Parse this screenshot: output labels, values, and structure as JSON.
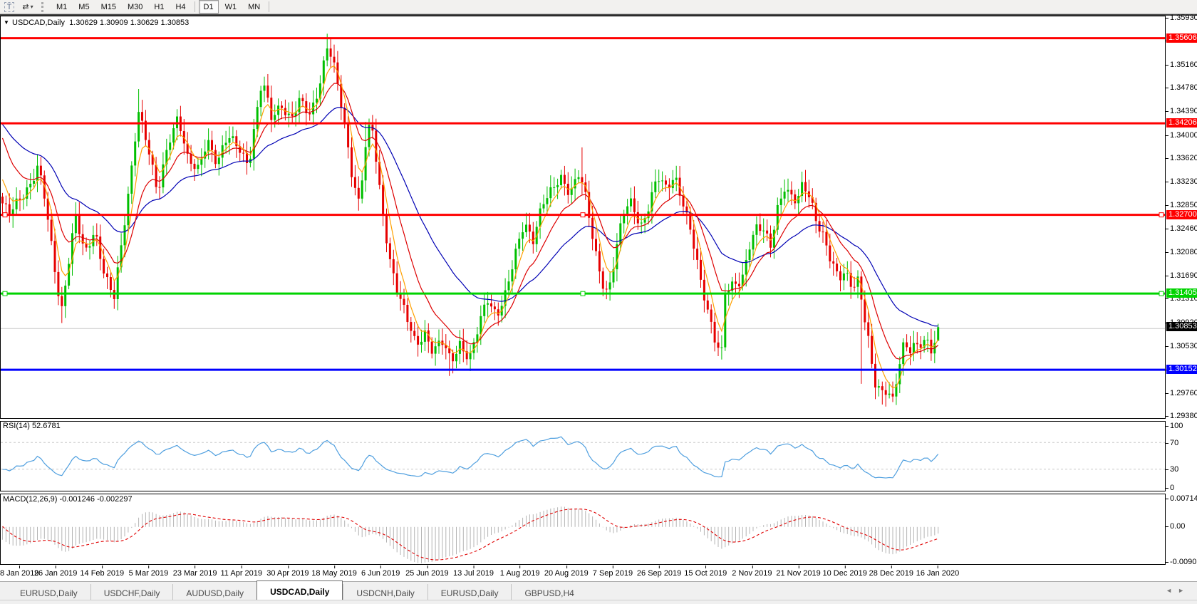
{
  "toolbar": {
    "tools": [
      {
        "name": "text-tool",
        "glyph": "T"
      },
      {
        "name": "cursor-tool",
        "glyph": "⇄",
        "caret": "▾"
      }
    ],
    "timeframes": [
      "M1",
      "M5",
      "M15",
      "M30",
      "H1",
      "H4",
      "D1",
      "W1",
      "MN"
    ],
    "active_timeframe": "D1"
  },
  "chart": {
    "title": "USDCAD,Daily  1.30629 1.30909 1.30629 1.30853",
    "dropdown_icon": "▼",
    "price_axis_ticks": [
      "1.35930",
      "1.35550",
      "1.35160",
      "1.34780",
      "1.34390",
      "1.34000",
      "1.33620",
      "1.33230",
      "1.32850",
      "1.32460",
      "1.32080",
      "1.31690",
      "1.31310",
      "1.30920",
      "1.30530",
      "1.30140",
      "1.29760",
      "1.29380"
    ],
    "hlines": [
      {
        "price": 1.35606,
        "label": "1.35606",
        "color": "#ff0000",
        "width": 3,
        "handles": false
      },
      {
        "price": 1.34206,
        "label": "1.34206",
        "color": "#ff0000",
        "width": 3,
        "handles": false
      },
      {
        "price": 1.327,
        "label": "1.32700",
        "color": "#ff0000",
        "width": 3,
        "handles": true
      },
      {
        "price": 1.31405,
        "label": "1.31405",
        "color": "#00d300",
        "width": 3,
        "handles": true
      },
      {
        "price": 1.30152,
        "label": "1.30152",
        "color": "#0000ff",
        "width": 3,
        "handles": false
      },
      {
        "price": 1.3083,
        "label": "",
        "color": "#c8c8c8",
        "width": 1,
        "handles": false
      }
    ],
    "current_price": {
      "label": "1.30853",
      "value": 1.30853,
      "badge_color": "#000000"
    }
  },
  "rsi_panel": {
    "label": "RSI(14) 52.6781",
    "period": 14,
    "value": 52.6781,
    "axis": [
      "100",
      "70",
      "30",
      "0"
    ],
    "level_lines": [
      70,
      30
    ],
    "line_color": "#4f9fdf"
  },
  "macd_panel": {
    "label": "MACD(12,26,9) -0.001246 -0.002297",
    "axis": [
      "0.00714",
      "0.00",
      "-0.009015"
    ],
    "range": {
      "max": 0.00714,
      "min": -0.009015
    },
    "histogram_color": "#b4b4b4",
    "signal_color": "#e00000"
  },
  "date_axis": [
    "8 Jan 2019",
    "26 Jan 2019",
    "14 Feb 2019",
    "5 Mar 2019",
    "23 Mar 2019",
    "11 Apr 2019",
    "30 Apr 2019",
    "18 May 2019",
    "6 Jun 2019",
    "25 Jun 2019",
    "13 Jul 2019",
    "1 Aug 2019",
    "20 Aug 2019",
    "7 Sep 2019",
    "26 Sep 2019",
    "15 Oct 2019",
    "2 Nov 2019",
    "21 Nov 2019",
    "10 Dec 2019",
    "28 Dec 2019",
    "16 Jan 2020"
  ],
  "tabs": {
    "items": [
      "EURUSD,Daily",
      "USDCHF,Daily",
      "AUDUSD,Daily",
      "USDCAD,Daily",
      "USDCNH,Daily",
      "EURUSD,Daily",
      "GBPUSD,H4"
    ],
    "active_index": 3,
    "scroll_left": "◄",
    "scroll_right": "►"
  },
  "chart_data": {
    "type": "candlestick",
    "symbol": "USDCAD",
    "timeframe": "Daily",
    "current_ohlc": {
      "open": 1.30629,
      "high": 1.30909,
      "low": 1.30629,
      "close": 1.30853
    },
    "y_axis_range": {
      "top": 1.3593,
      "bottom": 1.2938
    },
    "horizontal_levels": [
      1.35606,
      1.34206,
      1.327,
      1.31405,
      1.30152
    ],
    "moving_averages": [
      {
        "name": "fast",
        "period": 5,
        "color": "#ffa000"
      },
      {
        "name": "medium",
        "period": 13,
        "color": "#dd0000"
      },
      {
        "name": "slow",
        "period": 34,
        "color": "#0000b4"
      }
    ],
    "indicators": {
      "rsi": {
        "period": 14,
        "last": 52.6781
      },
      "macd": {
        "fast": 12,
        "slow": 26,
        "signal": 9,
        "last_macd": -0.001246,
        "last_signal": -0.002297
      }
    },
    "bars": {
      "first_x": 2.5,
      "step": 4.9,
      "count": 269
    },
    "colors": {
      "bull": "#00bf00",
      "bear": "#e60000"
    },
    "pre_window_path": {
      "start": 1.3265,
      "peak": 1.3635,
      "end": 1.33,
      "rise_bars": 20,
      "fall_bars": 14
    },
    "price_path_anchors": [
      [
        2,
        1.329
      ],
      [
        12,
        1.3268
      ],
      [
        25,
        1.3292
      ],
      [
        40,
        1.332
      ],
      [
        52,
        1.335
      ],
      [
        60,
        1.331
      ],
      [
        70,
        1.3225
      ],
      [
        85,
        1.311
      ],
      [
        93,
        1.318
      ],
      [
        105,
        1.327
      ],
      [
        118,
        1.32
      ],
      [
        132,
        1.3245
      ],
      [
        146,
        1.3175
      ],
      [
        159,
        1.3132
      ],
      [
        170,
        1.322
      ],
      [
        183,
        1.334
      ],
      [
        193,
        1.3448
      ],
      [
        206,
        1.3385
      ],
      [
        220,
        1.33
      ],
      [
        236,
        1.3395
      ],
      [
        249,
        1.3435
      ],
      [
        262,
        1.336
      ],
      [
        276,
        1.334
      ],
      [
        290,
        1.3398
      ],
      [
        304,
        1.3355
      ],
      [
        318,
        1.3395
      ],
      [
        333,
        1.3385
      ],
      [
        348,
        1.3355
      ],
      [
        367,
        1.349
      ],
      [
        380,
        1.343
      ],
      [
        394,
        1.3455
      ],
      [
        407,
        1.3425
      ],
      [
        420,
        1.3455
      ],
      [
        434,
        1.3435
      ],
      [
        447,
        1.3485
      ],
      [
        459,
        1.355
      ],
      [
        469,
        1.3505
      ],
      [
        481,
        1.343
      ],
      [
        493,
        1.334
      ],
      [
        503,
        1.329
      ],
      [
        514,
        1.34
      ],
      [
        521,
        1.3415
      ],
      [
        533,
        1.33
      ],
      [
        546,
        1.32
      ],
      [
        558,
        1.314
      ],
      [
        572,
        1.309
      ],
      [
        583,
        1.3055
      ],
      [
        595,
        1.308
      ],
      [
        607,
        1.3045
      ],
      [
        619,
        1.306
      ],
      [
        632,
        1.3028
      ],
      [
        645,
        1.3062
      ],
      [
        658,
        1.3032
      ],
      [
        670,
        1.308
      ],
      [
        683,
        1.3132
      ],
      [
        696,
        1.3108
      ],
      [
        709,
        1.3142
      ],
      [
        722,
        1.32
      ],
      [
        735,
        1.3258
      ],
      [
        747,
        1.3232
      ],
      [
        760,
        1.3288
      ],
      [
        773,
        1.3305
      ],
      [
        786,
        1.3332
      ],
      [
        799,
        1.331
      ],
      [
        812,
        1.334
      ],
      [
        822,
        1.329
      ],
      [
        833,
        1.3215
      ],
      [
        845,
        1.316
      ],
      [
        852,
        1.3142
      ],
      [
        863,
        1.3205
      ],
      [
        874,
        1.3272
      ],
      [
        886,
        1.3292
      ],
      [
        898,
        1.3252
      ],
      [
        910,
        1.3286
      ],
      [
        922,
        1.333
      ],
      [
        934,
        1.3312
      ],
      [
        946,
        1.3338
      ],
      [
        958,
        1.329
      ],
      [
        970,
        1.3232
      ],
      [
        982,
        1.316
      ],
      [
        994,
        1.3108
      ],
      [
        1004,
        1.3062
      ],
      [
        1012,
        1.3045
      ],
      [
        1016,
        1.314
      ],
      [
        1028,
        1.315
      ],
      [
        1040,
        1.3162
      ],
      [
        1052,
        1.323
      ],
      [
        1062,
        1.3252
      ],
      [
        1072,
        1.324
      ],
      [
        1080,
        1.3212
      ],
      [
        1090,
        1.328
      ],
      [
        1100,
        1.332
      ],
      [
        1108,
        1.3305
      ],
      [
        1118,
        1.329
      ],
      [
        1126,
        1.3318
      ],
      [
        1136,
        1.3295
      ],
      [
        1146,
        1.326
      ],
      [
        1156,
        1.3235
      ],
      [
        1166,
        1.319
      ],
      [
        1176,
        1.3162
      ],
      [
        1186,
        1.3172
      ],
      [
        1196,
        1.3155
      ],
      [
        1204,
        1.3168
      ],
      [
        1210,
        1.312
      ],
      [
        1218,
        1.306
      ],
      [
        1226,
        1.299
      ],
      [
        1236,
        1.2975
      ],
      [
        1244,
        1.2985
      ],
      [
        1252,
        1.297
      ],
      [
        1260,
        1.302
      ],
      [
        1268,
        1.3058
      ],
      [
        1276,
        1.3042
      ],
      [
        1284,
        1.3052
      ],
      [
        1292,
        1.306
      ],
      [
        1300,
        1.3068
      ],
      [
        1308,
        1.3048
      ],
      [
        1316,
        1.3085
      ]
    ],
    "wick_extremes": [
      [
        85,
        "low",
        1.3092
      ],
      [
        193,
        "high",
        1.3477
      ],
      [
        459,
        "high",
        1.3568
      ],
      [
        514,
        "high",
        1.3423
      ],
      [
        817,
        "high",
        1.3381
      ],
      [
        632,
        "low",
        1.3005
      ],
      [
        658,
        "low",
        1.3013
      ],
      [
        1206,
        "low",
        1.2992
      ],
      [
        1236,
        "low",
        1.2958
      ],
      [
        1252,
        "low",
        1.2962
      ]
    ]
  }
}
